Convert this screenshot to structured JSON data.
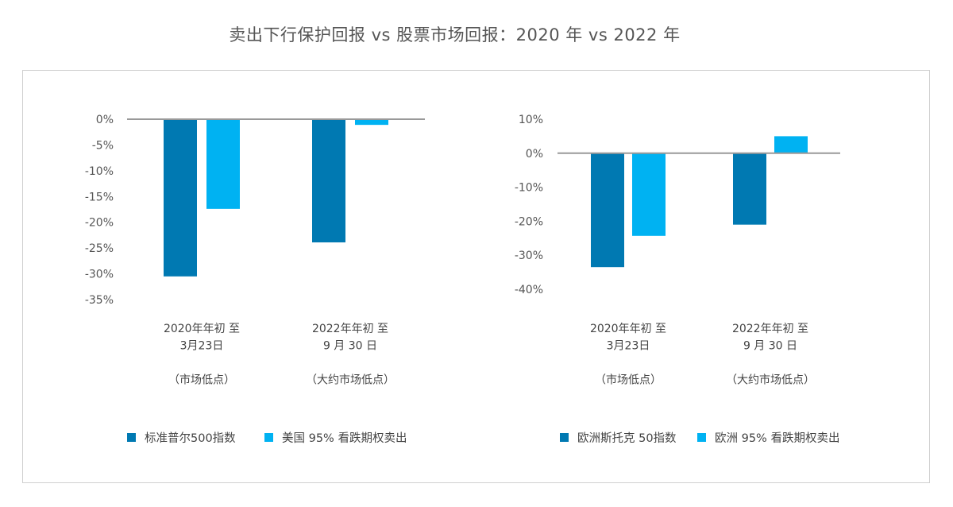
{
  "title": "卖出下行保护回报 vs 股票市场回报：2020 年 vs 2022 年",
  "colors": {
    "index": "#0079b2",
    "put": "#00b2f2",
    "axis": "#999999",
    "frame": "#cfcfcf"
  },
  "chart_data": [
    {
      "type": "bar",
      "categories": [
        [
          "2020年年初 至",
          "3月23日",
          "",
          "（市场低点）"
        ],
        [
          "2022年年初 至",
          "9 月 30 日",
          "",
          "（大约市场低点）"
        ]
      ],
      "series": [
        {
          "name": "标准普尔500指数",
          "values": [
            -30.5,
            -23.9
          ]
        },
        {
          "name": "美国 95% 看跌期权卖出",
          "values": [
            -17.4,
            -1.1
          ]
        }
      ],
      "yticks": [
        "0%",
        "-5%",
        "-10%",
        "-15%",
        "-20%",
        "-25%",
        "-30%",
        "-35%"
      ],
      "ylim": [
        -35,
        0
      ],
      "legend_position": "bottom"
    },
    {
      "type": "bar",
      "categories": [
        [
          "2020年年初 至",
          "3月23日",
          "",
          "（市场低点）"
        ],
        [
          "2022年年初 至",
          "9 月 30 日",
          "",
          "（大约市场低点）"
        ]
      ],
      "series": [
        {
          "name": "欧洲斯托克 50指数",
          "values": [
            -33.5,
            -21.0
          ]
        },
        {
          "name": "欧洲 95% 看跌期权卖出",
          "values": [
            -24.3,
            5.0
          ]
        }
      ],
      "yticks": [
        "10%",
        "0%",
        "-10%",
        "-20%",
        "-30%",
        "-40%"
      ],
      "ylim": [
        -40,
        10
      ],
      "legend_position": "bottom"
    }
  ]
}
